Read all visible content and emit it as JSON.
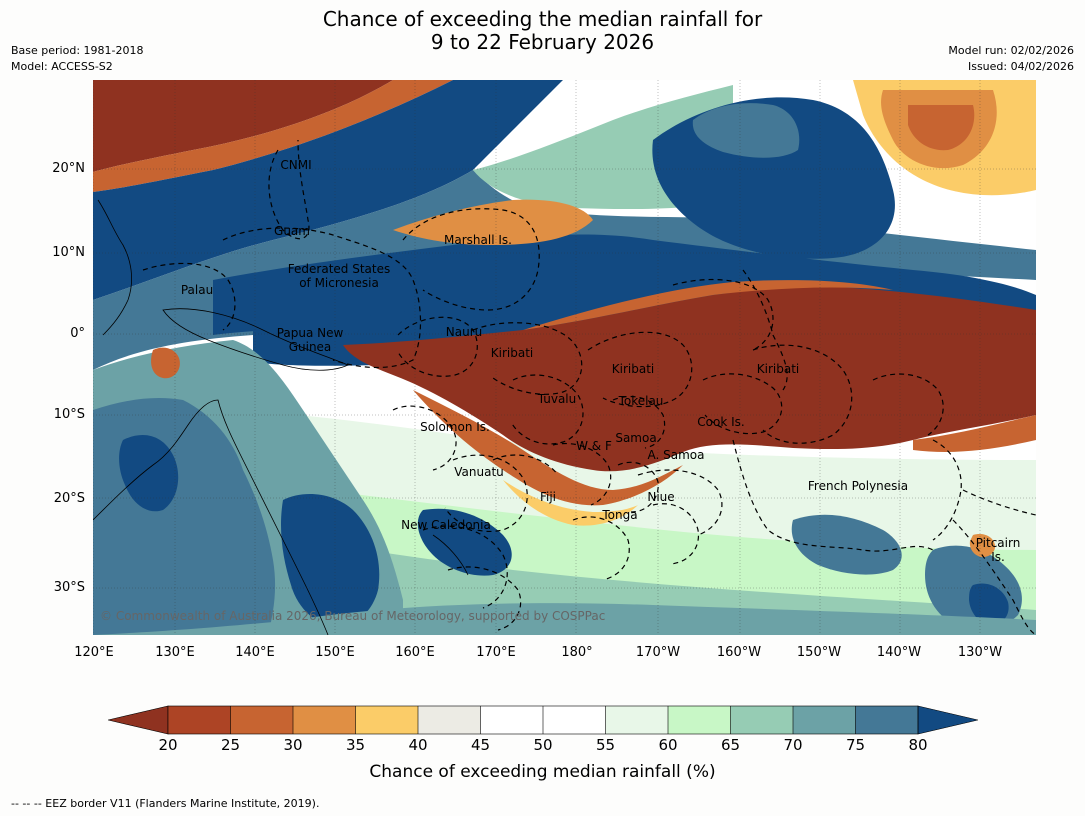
{
  "title": {
    "line1": "Chance of exceeding the median rainfall for",
    "line2": "9 to 22 February 2026"
  },
  "meta": {
    "base_period": "Base period: 1981-2018",
    "model": "Model: ACCESS-S2",
    "model_run": "Model run: 02/02/2026",
    "issued": "Issued: 04/02/2026"
  },
  "axes": {
    "lat_labels": [
      "20°N",
      "10°N",
      "0°",
      "10°S",
      "20°S",
      "30°S"
    ],
    "lon_labels": [
      "120°E",
      "130°E",
      "140°E",
      "150°E",
      "160°E",
      "170°E",
      "180°",
      "170°W",
      "160°W",
      "150°W",
      "140°W",
      "130°W"
    ]
  },
  "regions": {
    "cnmi": "CNMI",
    "guam": "Guam",
    "marshall": "Marshall Is.",
    "fsm1": "Federated States",
    "fsm2": "of Micronesia",
    "palau": "Palau",
    "png1": "Papua New",
    "png2": "Guinea",
    "nauru": "Nauru",
    "kiribati_w": "Kiribati",
    "kiribati_c": "Kiribati",
    "kiribati_e": "Kiribati",
    "tuvalu": "Tuvalu",
    "tokelau": "Tokelau",
    "solomon": "Solomon Is.",
    "samoa": "Samoa",
    "wf": "W & F",
    "asamoa": "A. Samoa",
    "cook": "Cook Is.",
    "vanuatu": "Vanuatu",
    "fiji": "Fiji",
    "niue": "Niue",
    "tonga": "Tonga",
    "frpoly": "French Polynesia",
    "newcal": "New Caledonia",
    "pitcairn1": "Pitcairn",
    "pitcairn2": "Is."
  },
  "copyright": "© Commonwealth of Australia 2026, Bureau of Meteorology, supported by COSPPac",
  "colorbar": {
    "ticks": [
      "20",
      "25",
      "30",
      "35",
      "40",
      "45",
      "50",
      "55",
      "60",
      "65",
      "70",
      "75",
      "80"
    ],
    "label": "Chance of exceeding median rainfall (%)",
    "colors": {
      "below20": "#8f3220",
      "c20_25": "#ad4425",
      "c25_30": "#c76431",
      "c30_35": "#e08f44",
      "c35_40": "#fbcc68",
      "c40_45": "#ecebe4",
      "c45_50": "#ffffff",
      "c50_55": "#ffffff",
      "c55_60": "#e8f7e8",
      "c60_65": "#c8f7c6",
      "c65_70": "#96ccb4",
      "c70_75": "#6ca2a6",
      "c75_80": "#447896",
      "above80": "#124a82"
    }
  },
  "footer": "--  --  -- EEZ border V11 (Flanders Marine Institute, 2019)."
}
